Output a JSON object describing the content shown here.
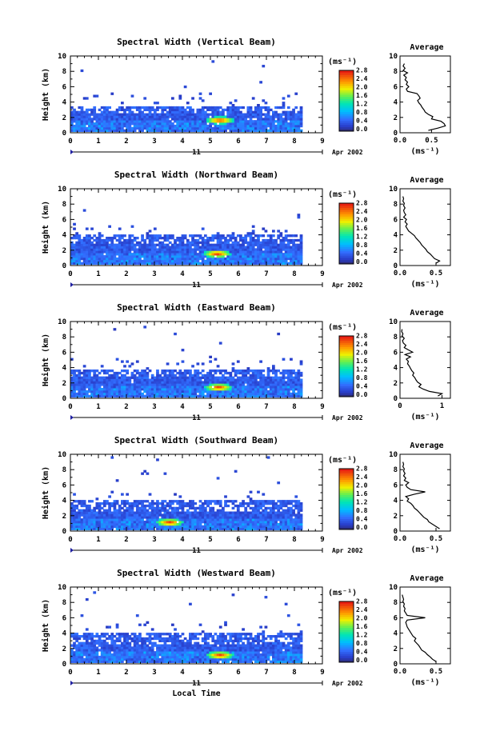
{
  "chart_data": [
    {
      "type": "heatmap",
      "title": "Spectral Width (Vertical Beam)",
      "ylabel": "Height (km)",
      "xlim": [
        0,
        9
      ],
      "ylim": [
        0,
        10
      ],
      "x_ticks": [
        "0",
        "1",
        "2",
        "3",
        "4",
        "5",
        "6",
        "7",
        "8",
        "9"
      ],
      "y_ticks": [
        "0",
        "2",
        "4",
        "6",
        "8",
        "10"
      ],
      "date_day": "11",
      "date_label": "Apr 2002",
      "colorbar": {
        "unit": "(ms⁻¹)",
        "ticks": [
          "0.0",
          "0.4",
          "0.8",
          "1.2",
          "1.6",
          "2.0",
          "2.4",
          "2.8"
        ],
        "range": [
          0,
          2.8
        ]
      },
      "data_extent": {
        "x": [
          0,
          8.2
        ],
        "base_top_km": 2.3,
        "layer_top_km": 3.4,
        "hot_x": 5.3,
        "hot_y": 1.5,
        "seed": 11
      },
      "average": {
        "title": "Average",
        "xlabel": "(ms⁻¹)",
        "x_ticks": [
          "0.0",
          "0.5"
        ],
        "xlim": [
          0,
          0.8
        ],
        "ylim": [
          0,
          10
        ],
        "heights": [
          0.3,
          0.6,
          0.9,
          1.2,
          1.5,
          1.8,
          2.1,
          2.4,
          2.7,
          3.0,
          3.3,
          3.6,
          3.9,
          4.2,
          4.5,
          4.8,
          5.1,
          5.4,
          5.7,
          6.0,
          6.3,
          6.6,
          6.9,
          7.2,
          7.5,
          7.8,
          8.1,
          8.4,
          8.7,
          9.0
        ],
        "values": [
          0.45,
          0.6,
          0.72,
          0.7,
          0.65,
          0.5,
          0.52,
          0.45,
          0.4,
          0.38,
          0.35,
          0.33,
          0.3,
          0.28,
          0.32,
          0.3,
          0.27,
          0.12,
          0.1,
          0.14,
          0.1,
          0.12,
          0.08,
          0.1,
          0.06,
          0.12,
          0.05,
          0.08,
          0.05,
          0.07
        ]
      }
    },
    {
      "type": "heatmap",
      "title": "Spectral Width (Northward Beam)",
      "ylabel": "Height (km)",
      "xlim": [
        0,
        9
      ],
      "ylim": [
        0,
        10
      ],
      "x_ticks": [
        "0",
        "1",
        "2",
        "3",
        "4",
        "5",
        "6",
        "7",
        "8",
        "9"
      ],
      "y_ticks": [
        "0",
        "2",
        "4",
        "6",
        "8",
        "10"
      ],
      "date_day": "11",
      "date_label": "Apr 2002",
      "colorbar": {
        "unit": "(ms⁻¹)",
        "ticks": [
          "0.0",
          "0.4",
          "0.8",
          "1.2",
          "1.6",
          "2.0",
          "2.4",
          "2.8"
        ],
        "range": [
          0,
          2.8
        ]
      },
      "data_extent": {
        "x": [
          0,
          8.2
        ],
        "base_top_km": 2.8,
        "layer_top_km": 3.8,
        "hot_x": 5.2,
        "hot_y": 1.4,
        "seed": 22
      },
      "average": {
        "title": "Average",
        "xlabel": "(ms⁻¹)",
        "x_ticks": [
          "0.0",
          "0.5"
        ],
        "xlim": [
          0,
          0.7
        ],
        "ylim": [
          0,
          10
        ],
        "heights": [
          0.3,
          0.6,
          0.9,
          1.2,
          1.5,
          1.8,
          2.1,
          2.4,
          2.7,
          3.0,
          3.3,
          3.6,
          3.9,
          4.2,
          4.5,
          4.8,
          5.1,
          5.4,
          5.7,
          6.0,
          6.3,
          6.6,
          6.9,
          7.2,
          7.5,
          7.8,
          8.1,
          8.4,
          8.7,
          9.0
        ],
        "values": [
          0.5,
          0.55,
          0.48,
          0.45,
          0.42,
          0.38,
          0.36,
          0.33,
          0.3,
          0.28,
          0.25,
          0.22,
          0.2,
          0.16,
          0.12,
          0.1,
          0.08,
          0.1,
          0.07,
          0.09,
          0.05,
          0.08,
          0.06,
          0.05,
          0.07,
          0.05,
          0.06,
          0.04,
          0.05,
          0.04
        ]
      }
    },
    {
      "type": "heatmap",
      "title": "Spectral Width (Eastward Beam)",
      "ylabel": "Height (km)",
      "xlim": [
        0,
        9
      ],
      "ylim": [
        0,
        10
      ],
      "x_ticks": [
        "0",
        "1",
        "2",
        "3",
        "4",
        "5",
        "6",
        "7",
        "8",
        "9"
      ],
      "y_ticks": [
        "0",
        "2",
        "4",
        "6",
        "8",
        "10"
      ],
      "date_day": "11",
      "date_label": "Apr 2002",
      "colorbar": {
        "unit": "(ms⁻¹)",
        "ticks": [
          "0.0",
          "0.4",
          "0.8",
          "1.2",
          "1.6",
          "2.0",
          "2.4",
          "2.8"
        ],
        "range": [
          0,
          2.8
        ]
      },
      "data_extent": {
        "x": [
          0,
          8.2
        ],
        "base_top_km": 2.6,
        "layer_top_km": 3.6,
        "hot_x": 5.25,
        "hot_y": 1.3,
        "seed": 33
      },
      "average": {
        "title": "Average",
        "xlabel": "(ms⁻¹)",
        "x_ticks": [
          "0",
          "1"
        ],
        "xlim": [
          0,
          1.2
        ],
        "ylim": [
          0,
          10
        ],
        "heights": [
          0.3,
          0.6,
          0.9,
          1.2,
          1.5,
          1.8,
          2.1,
          2.4,
          2.7,
          3.0,
          3.3,
          3.6,
          3.9,
          4.2,
          4.5,
          4.8,
          5.1,
          5.4,
          5.7,
          6.0,
          6.3,
          6.6,
          6.9,
          7.2,
          7.5,
          7.8,
          8.1,
          8.4,
          8.7,
          9.0
        ],
        "values": [
          0.9,
          1.0,
          0.7,
          0.55,
          0.45,
          0.5,
          0.42,
          0.38,
          0.35,
          0.3,
          0.33,
          0.28,
          0.25,
          0.22,
          0.18,
          0.2,
          0.15,
          0.25,
          0.12,
          0.3,
          0.2,
          0.1,
          0.14,
          0.08,
          0.06,
          0.1,
          0.05,
          0.07,
          0.04,
          0.05
        ]
      }
    },
    {
      "type": "heatmap",
      "title": "Spectral Width (Southward Beam)",
      "ylabel": "Height (km)",
      "xlim": [
        0,
        9
      ],
      "ylim": [
        0,
        10
      ],
      "x_ticks": [
        "0",
        "1",
        "2",
        "3",
        "4",
        "5",
        "6",
        "7",
        "8",
        "9"
      ],
      "y_ticks": [
        "0",
        "2",
        "4",
        "6",
        "8",
        "10"
      ],
      "date_day": "11",
      "date_label": "Apr 2002",
      "colorbar": {
        "unit": "(ms⁻¹)",
        "ticks": [
          "0.0",
          "0.4",
          "0.8",
          "1.2",
          "1.6",
          "2.0",
          "2.4",
          "2.8"
        ],
        "range": [
          0,
          2.8
        ]
      },
      "data_extent": {
        "x": [
          0,
          8.2
        ],
        "base_top_km": 2.4,
        "layer_top_km": 3.9,
        "hot_x": 3.5,
        "hot_y": 1.0,
        "seed": 44
      },
      "average": {
        "title": "Average",
        "xlabel": "(ms⁻¹)",
        "x_ticks": [
          "0.0",
          "0.5"
        ],
        "xlim": [
          0,
          0.7
        ],
        "ylim": [
          0,
          10
        ],
        "heights": [
          0.3,
          0.6,
          0.9,
          1.2,
          1.5,
          1.8,
          2.1,
          2.4,
          2.7,
          3.0,
          3.3,
          3.6,
          3.9,
          4.2,
          4.5,
          4.8,
          5.1,
          5.4,
          5.7,
          6.0,
          6.3,
          6.6,
          6.9,
          7.2,
          7.5,
          7.8,
          8.1,
          8.4,
          8.7,
          9.0
        ],
        "values": [
          0.55,
          0.5,
          0.45,
          0.4,
          0.38,
          0.33,
          0.3,
          0.27,
          0.24,
          0.2,
          0.18,
          0.15,
          0.1,
          0.12,
          0.08,
          0.2,
          0.35,
          0.15,
          0.1,
          0.08,
          0.12,
          0.06,
          0.08,
          0.05,
          0.07,
          0.05,
          0.06,
          0.04,
          0.05,
          0.04
        ]
      }
    },
    {
      "type": "heatmap",
      "title": "Spectral Width (Westward Beam)",
      "ylabel": "Height (km)",
      "xlabel": "Local Time",
      "xlim": [
        0,
        9
      ],
      "ylim": [
        0,
        10
      ],
      "x_ticks": [
        "0",
        "1",
        "2",
        "3",
        "4",
        "5",
        "6",
        "7",
        "8",
        "9"
      ],
      "y_ticks": [
        "0",
        "2",
        "4",
        "6",
        "8",
        "10"
      ],
      "date_day": "11",
      "date_label": "Apr 2002",
      "colorbar": {
        "unit": "(ms⁻¹)",
        "ticks": [
          "0.0",
          "0.4",
          "0.8",
          "1.2",
          "1.6",
          "2.0",
          "2.4",
          "2.8"
        ],
        "range": [
          0,
          2.8
        ]
      },
      "data_extent": {
        "x": [
          0,
          8.2
        ],
        "base_top_km": 2.5,
        "layer_top_km": 4.0,
        "hot_x": 5.3,
        "hot_y": 1.0,
        "seed": 55
      },
      "average": {
        "title": "Average",
        "xlabel": "(ms⁻¹)",
        "x_ticks": [
          "0.0",
          "0.5"
        ],
        "xlim": [
          0,
          0.7
        ],
        "ylim": [
          0,
          10
        ],
        "heights": [
          0.3,
          0.6,
          0.9,
          1.2,
          1.5,
          1.8,
          2.1,
          2.4,
          2.7,
          3.0,
          3.3,
          3.6,
          3.9,
          4.2,
          4.5,
          4.8,
          5.1,
          5.4,
          5.7,
          6.0,
          6.3,
          6.6,
          6.9,
          7.2,
          7.5,
          7.8,
          8.1,
          8.4,
          8.7,
          9.0
        ],
        "values": [
          0.5,
          0.45,
          0.42,
          0.38,
          0.35,
          0.3,
          0.28,
          0.26,
          0.23,
          0.2,
          0.22,
          0.18,
          0.16,
          0.14,
          0.12,
          0.1,
          0.09,
          0.08,
          0.1,
          0.35,
          0.1,
          0.08,
          0.06,
          0.07,
          0.05,
          0.06,
          0.04,
          0.05,
          0.04,
          0.03
        ]
      }
    }
  ]
}
